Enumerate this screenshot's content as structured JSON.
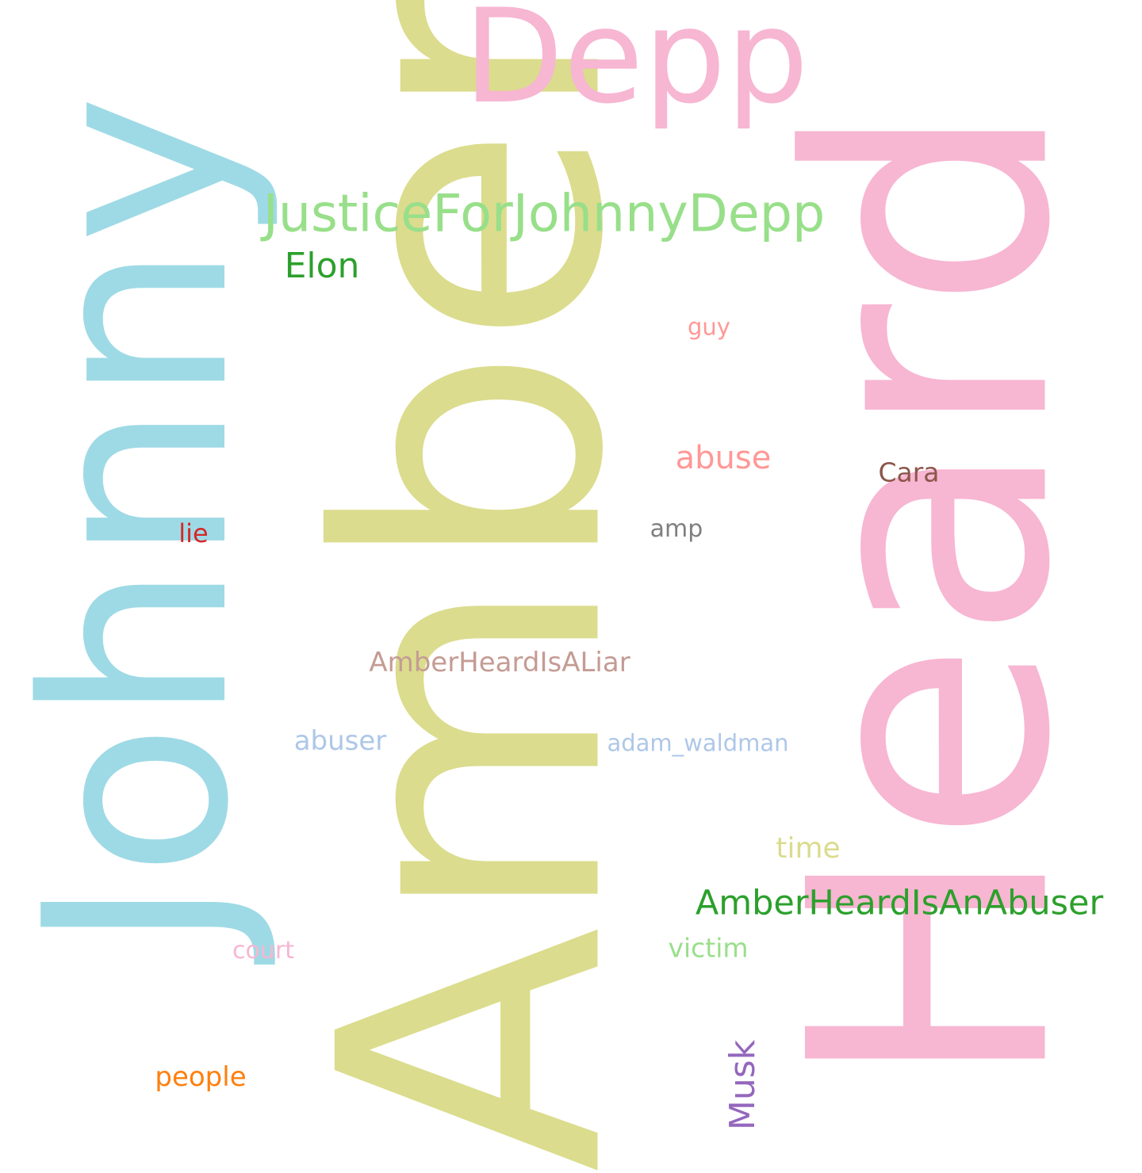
{
  "word_cloud": {
    "words": [
      {
        "id": "amber",
        "text": "Amber",
        "color": "#dbdc8d"
      },
      {
        "id": "heard",
        "text": "Heard",
        "color": "#f7b6d2"
      },
      {
        "id": "johnny",
        "text": "Johnny",
        "color": "#9edae5"
      },
      {
        "id": "depp",
        "text": "Depp",
        "color": "#f7b6d2"
      },
      {
        "id": "justice",
        "text": "JusticeForJohnnyDepp",
        "color": "#98df8a"
      },
      {
        "id": "elon",
        "text": "Elon",
        "color": "#2ca02c"
      },
      {
        "id": "guy",
        "text": "guy",
        "color": "#ff9896"
      },
      {
        "id": "abuse",
        "text": "abuse",
        "color": "#ff9896"
      },
      {
        "id": "cara",
        "text": "Cara",
        "color": "#8c564b"
      },
      {
        "id": "amp",
        "text": "amp",
        "color": "#7f7f7f"
      },
      {
        "id": "lie",
        "text": "lie",
        "color": "#d62728"
      },
      {
        "id": "liar",
        "text": "AmberHeardIsALiar",
        "color": "#c49c94"
      },
      {
        "id": "abuser",
        "text": "abuser",
        "color": "#aec7e8"
      },
      {
        "id": "adam",
        "text": "adam_waldman",
        "color": "#aec7e8"
      },
      {
        "id": "time",
        "text": "time",
        "color": "#dbdb8d"
      },
      {
        "id": "anabuser",
        "text": "AmberHeardIsAnAbuser",
        "color": "#2ca02c"
      },
      {
        "id": "victim",
        "text": "victim",
        "color": "#98df8a"
      },
      {
        "id": "court",
        "text": "court",
        "color": "#f7b6d2"
      },
      {
        "id": "musk",
        "text": "Musk",
        "color": "#9467bd"
      },
      {
        "id": "people",
        "text": "people",
        "color": "#ff7f0e"
      }
    ]
  }
}
